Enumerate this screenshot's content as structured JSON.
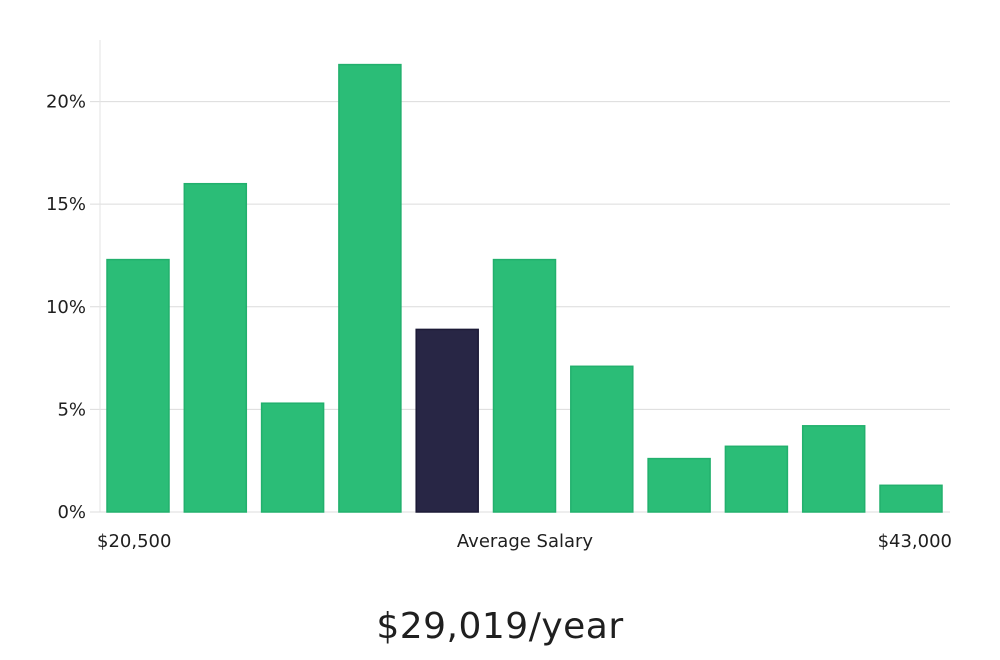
{
  "chart_data": {
    "type": "bar",
    "ylabel": "",
    "xlabel": "Average Salary",
    "ylim": [
      0,
      23
    ],
    "yticks": [
      0,
      5,
      10,
      15,
      20
    ],
    "ytick_labels": [
      "0%",
      "5%",
      "10%",
      "15%",
      "20%"
    ],
    "x_start_label": "$20,500",
    "x_end_label": "$43,000",
    "values": [
      12.3,
      16.0,
      5.3,
      21.8,
      8.9,
      12.3,
      7.1,
      2.6,
      3.2,
      4.2,
      1.3
    ],
    "highlight_index": 4,
    "grid": true
  },
  "colors": {
    "bar": "#2bbd77",
    "bar_border": "#22b06d",
    "highlight": "#282645",
    "grid": "#dcdcdc",
    "axis": "#e3e3e3"
  },
  "summary": {
    "salary_text": "$29,019/year"
  }
}
